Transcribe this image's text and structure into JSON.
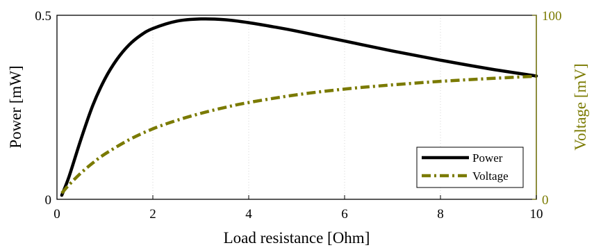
{
  "chart_data": {
    "type": "line",
    "xlabel": "Load resistance [Ohm]",
    "ylabel_left": "Power [mW]",
    "ylabel_right": "Voltage [mV]",
    "xlim": [
      0,
      10
    ],
    "ylim_left": [
      0,
      0.5
    ],
    "ylim_right": [
      0,
      100
    ],
    "x_ticks": [
      "0",
      "2",
      "4",
      "6",
      "8",
      "10"
    ],
    "y_left_ticks": [
      "0",
      "0.5"
    ],
    "y_right_ticks": [
      "0",
      "100"
    ],
    "grid": "vertical dotted",
    "legend_position": "bottom-right",
    "series": [
      {
        "name": "Power",
        "axis": "left",
        "style": "solid",
        "color": "#000000",
        "x": [
          0.1,
          0.25,
          0.5,
          0.75,
          1.0,
          1.25,
          1.5,
          1.75,
          2.0,
          2.5,
          3.0,
          3.5,
          4.0,
          4.5,
          5.0,
          6.0,
          7.0,
          8.0,
          9.0,
          10.0
        ],
        "y": [
          0.011,
          0.061,
          0.163,
          0.256,
          0.327,
          0.38,
          0.419,
          0.446,
          0.464,
          0.484,
          0.49,
          0.488,
          0.48,
          0.469,
          0.457,
          0.43,
          0.403,
          0.378,
          0.355,
          0.335
        ]
      },
      {
        "name": "Voltage",
        "axis": "right",
        "style": "dash-dot",
        "color": "#7a7a00",
        "x": [
          0.1,
          0.25,
          0.5,
          0.75,
          1.0,
          1.5,
          2.0,
          2.5,
          3.0,
          3.5,
          4.0,
          5.0,
          6.0,
          7.0,
          8.0,
          9.0,
          10.0
        ],
        "y": [
          3.3,
          7.8,
          14.3,
          19.8,
          24.6,
          32.3,
          38.3,
          42.9,
          46.7,
          49.9,
          52.6,
          56.8,
          59.9,
          62.2,
          64.1,
          65.6,
          66.9
        ]
      }
    ]
  }
}
